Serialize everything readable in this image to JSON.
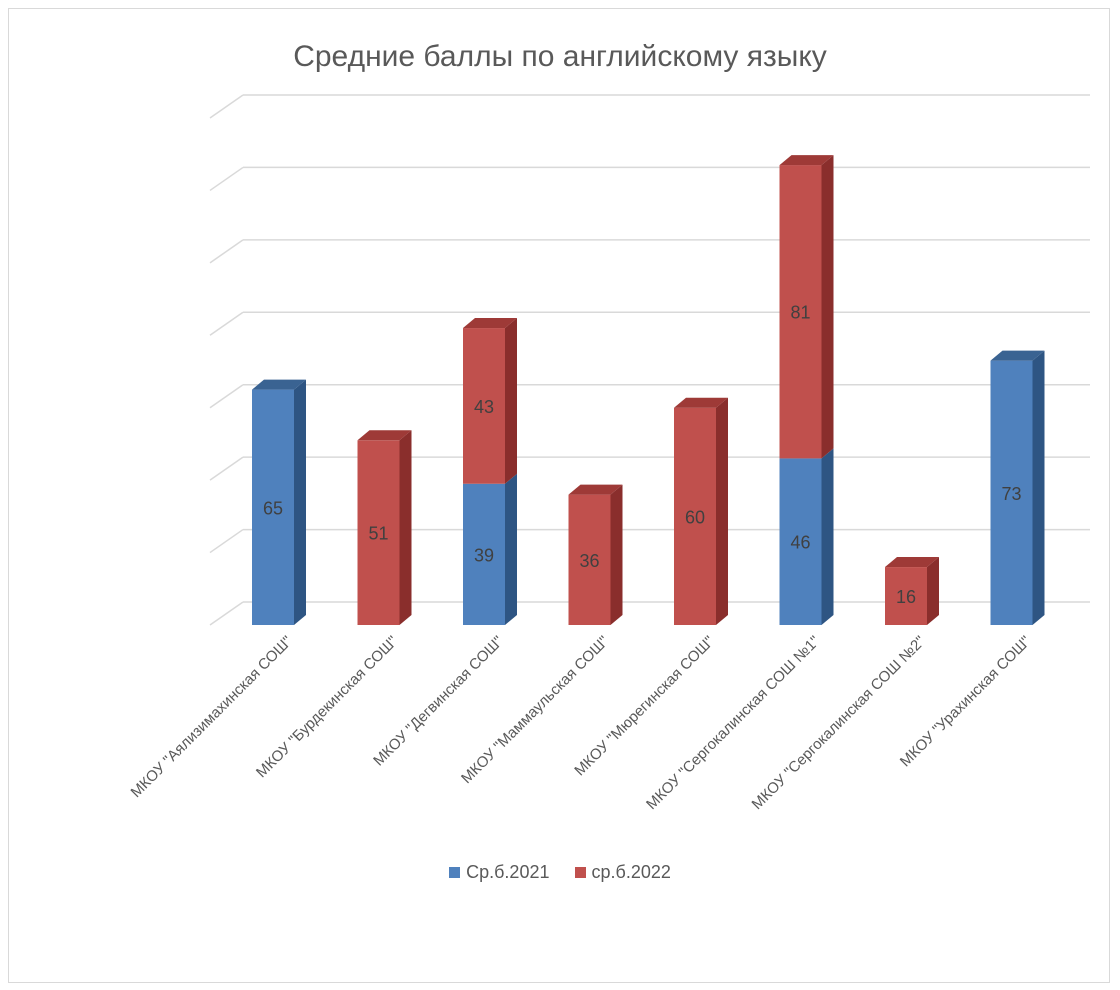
{
  "chart_data": {
    "type": "bar",
    "stacked": true,
    "title": "Средние баллы по английскому языку",
    "categories": [
      "МКОУ \"Аялизимахинская СОШ\"",
      "МКОУ \"Бурдекинская СОШ\"",
      "МКОУ \"Дегвинская СОШ\"",
      "МКОУ \"Маммаульская СОШ\"",
      "МКОУ \"Мюрегинская СОШ\"",
      "МКОУ \"Сергокалинская СОШ №1\"",
      "МКОУ \"Сергокалинская СОШ №2\"",
      "МКОУ \"Урахинская СОШ\""
    ],
    "series": [
      {
        "name": "Ср.б.2021",
        "color": "#4f81bd",
        "side_color": "#2e5583",
        "top_color": "#3a6392",
        "values": [
          65,
          null,
          39,
          null,
          null,
          46,
          null,
          73
        ]
      },
      {
        "name": "ср.б.2022",
        "color": "#c0504d",
        "side_color": "#8a2e2c",
        "top_color": "#9e3a37",
        "values": [
          null,
          51,
          43,
          36,
          60,
          81,
          16,
          null
        ]
      }
    ],
    "ylim": [
      0,
      140
    ],
    "grid": true,
    "legend_position": "bottom",
    "three_d": true
  }
}
